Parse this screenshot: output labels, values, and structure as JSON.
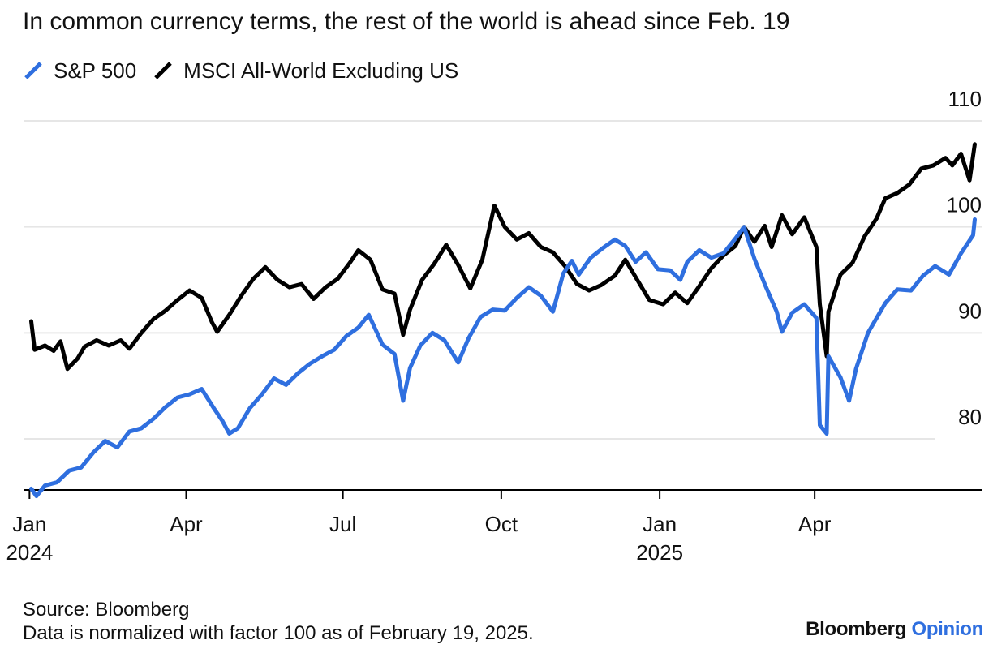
{
  "title": "In common currency terms, the rest of the world is ahead since Feb. 19",
  "legend": [
    {
      "name": "S&P 500",
      "color": "#2f6fdf",
      "icon": "diagonal-line-icon"
    },
    {
      "name": "MSCI All-World Excluding US",
      "color": "#000000",
      "icon": "diagonal-line-icon"
    }
  ],
  "footer": {
    "source": "Source: Bloomberg",
    "note": "Data is normalized with factor 100 as of February 19, 2025."
  },
  "brand": {
    "bloomberg": "Bloomberg",
    "opinion": "Opinion"
  },
  "colors": {
    "sp500": "#2f6fdf",
    "msci": "#000000",
    "grid": "#e6e6e6",
    "axis": "#000000"
  },
  "chart_data": {
    "type": "line",
    "title": "In common currency terms, the rest of the world is ahead since Feb. 19",
    "xlabel": "",
    "ylabel": "",
    "x_axis": {
      "min": "2023-12-29",
      "max": "2025-07-07",
      "ticks": [
        {
          "date": "2024-01-01",
          "label": "Jan",
          "sublabel": "2024"
        },
        {
          "date": "2024-04-01",
          "label": "Apr",
          "sublabel": ""
        },
        {
          "date": "2024-07-01",
          "label": "Jul",
          "sublabel": ""
        },
        {
          "date": "2024-10-01",
          "label": "Oct",
          "sublabel": ""
        },
        {
          "date": "2025-01-01",
          "label": "Jan",
          "sublabel": "2025"
        },
        {
          "date": "2025-04-01",
          "label": "Apr",
          "sublabel": ""
        }
      ]
    },
    "y_axis": {
      "min": 74,
      "max": 110,
      "ticks": [
        80,
        90,
        100,
        110
      ],
      "position": "right"
    },
    "grid": true,
    "legend_position": "top-left",
    "series": [
      {
        "name": "S&P 500",
        "color": "#2f6fdf",
        "points": [
          [
            "2024-01-02",
            75.3
          ],
          [
            "2024-01-05",
            74.6
          ],
          [
            "2024-01-10",
            75.6
          ],
          [
            "2024-01-17",
            75.9
          ],
          [
            "2024-01-24",
            77.0
          ],
          [
            "2024-01-31",
            77.3
          ],
          [
            "2024-02-07",
            78.7
          ],
          [
            "2024-02-14",
            79.8
          ],
          [
            "2024-02-21",
            79.2
          ],
          [
            "2024-02-28",
            80.7
          ],
          [
            "2024-03-06",
            81.0
          ],
          [
            "2024-03-13",
            81.9
          ],
          [
            "2024-03-20",
            83.0
          ],
          [
            "2024-03-27",
            83.9
          ],
          [
            "2024-04-03",
            84.2
          ],
          [
            "2024-04-10",
            84.7
          ],
          [
            "2024-04-17",
            82.9
          ],
          [
            "2024-04-22",
            81.7
          ],
          [
            "2024-04-26",
            80.5
          ],
          [
            "2024-05-01",
            81.0
          ],
          [
            "2024-05-08",
            82.9
          ],
          [
            "2024-05-15",
            84.2
          ],
          [
            "2024-05-22",
            85.7
          ],
          [
            "2024-05-29",
            85.1
          ],
          [
            "2024-06-05",
            86.2
          ],
          [
            "2024-06-12",
            87.1
          ],
          [
            "2024-06-19",
            87.8
          ],
          [
            "2024-06-26",
            88.4
          ],
          [
            "2024-07-03",
            89.7
          ],
          [
            "2024-07-10",
            90.5
          ],
          [
            "2024-07-16",
            91.7
          ],
          [
            "2024-07-24",
            88.9
          ],
          [
            "2024-07-31",
            88.0
          ],
          [
            "2024-08-05",
            83.6
          ],
          [
            "2024-08-09",
            86.7
          ],
          [
            "2024-08-15",
            88.8
          ],
          [
            "2024-08-22",
            90.0
          ],
          [
            "2024-08-29",
            89.3
          ],
          [
            "2024-09-06",
            87.2
          ],
          [
            "2024-09-12",
            89.5
          ],
          [
            "2024-09-19",
            91.5
          ],
          [
            "2024-09-26",
            92.2
          ],
          [
            "2024-10-03",
            92.1
          ],
          [
            "2024-10-10",
            93.3
          ],
          [
            "2024-10-17",
            94.3
          ],
          [
            "2024-10-24",
            93.5
          ],
          [
            "2024-10-31",
            92.0
          ],
          [
            "2024-11-06",
            95.6
          ],
          [
            "2024-11-11",
            96.8
          ],
          [
            "2024-11-15",
            95.5
          ],
          [
            "2024-11-22",
            97.1
          ],
          [
            "2024-11-29",
            98.0
          ],
          [
            "2024-12-06",
            98.8
          ],
          [
            "2024-12-12",
            98.2
          ],
          [
            "2024-12-18",
            96.7
          ],
          [
            "2024-12-24",
            97.6
          ],
          [
            "2024-12-31",
            96.0
          ],
          [
            "2025-01-07",
            95.9
          ],
          [
            "2025-01-13",
            95.0
          ],
          [
            "2025-01-17",
            96.7
          ],
          [
            "2025-01-24",
            97.8
          ],
          [
            "2025-01-31",
            97.1
          ],
          [
            "2025-02-07",
            97.5
          ],
          [
            "2025-02-14",
            98.9
          ],
          [
            "2025-02-19",
            100.0
          ],
          [
            "2025-02-25",
            97.0
          ],
          [
            "2025-03-03",
            94.6
          ],
          [
            "2025-03-10",
            92.0
          ],
          [
            "2025-03-13",
            90.1
          ],
          [
            "2025-03-19",
            91.9
          ],
          [
            "2025-03-26",
            92.7
          ],
          [
            "2025-04-02",
            91.4
          ],
          [
            "2025-04-04",
            81.3
          ],
          [
            "2025-04-08",
            80.5
          ],
          [
            "2025-04-09",
            87.8
          ],
          [
            "2025-04-16",
            85.8
          ],
          [
            "2025-04-21",
            83.6
          ],
          [
            "2025-04-25",
            86.6
          ],
          [
            "2025-05-02",
            90.0
          ],
          [
            "2025-05-12",
            92.8
          ],
          [
            "2025-05-19",
            94.1
          ],
          [
            "2025-05-27",
            94.0
          ],
          [
            "2025-06-03",
            95.4
          ],
          [
            "2025-06-10",
            96.3
          ],
          [
            "2025-06-18",
            95.5
          ],
          [
            "2025-06-25",
            97.5
          ],
          [
            "2025-07-02",
            99.2
          ],
          [
            "2025-07-03",
            100.7
          ]
        ]
      },
      {
        "name": "MSCI All-World Excluding US",
        "color": "#000000",
        "points": [
          [
            "2024-01-02",
            91.1
          ],
          [
            "2024-01-04",
            88.4
          ],
          [
            "2024-01-10",
            88.8
          ],
          [
            "2024-01-15",
            88.3
          ],
          [
            "2024-01-19",
            89.2
          ],
          [
            "2024-01-23",
            86.6
          ],
          [
            "2024-01-29",
            87.6
          ],
          [
            "2024-02-02",
            88.7
          ],
          [
            "2024-02-09",
            89.3
          ],
          [
            "2024-02-16",
            88.8
          ],
          [
            "2024-02-23",
            89.3
          ],
          [
            "2024-02-28",
            88.5
          ],
          [
            "2024-03-06",
            90.0
          ],
          [
            "2024-03-13",
            91.3
          ],
          [
            "2024-03-20",
            92.1
          ],
          [
            "2024-03-27",
            93.1
          ],
          [
            "2024-04-03",
            94.0
          ],
          [
            "2024-04-10",
            93.3
          ],
          [
            "2024-04-16",
            91.0
          ],
          [
            "2024-04-19",
            90.1
          ],
          [
            "2024-04-26",
            91.7
          ],
          [
            "2024-05-03",
            93.5
          ],
          [
            "2024-05-10",
            95.1
          ],
          [
            "2024-05-17",
            96.2
          ],
          [
            "2024-05-24",
            95.0
          ],
          [
            "2024-05-31",
            94.3
          ],
          [
            "2024-06-07",
            94.6
          ],
          [
            "2024-06-14",
            93.2
          ],
          [
            "2024-06-21",
            94.3
          ],
          [
            "2024-06-28",
            95.1
          ],
          [
            "2024-07-05",
            96.6
          ],
          [
            "2024-07-10",
            97.8
          ],
          [
            "2024-07-17",
            96.9
          ],
          [
            "2024-07-24",
            94.1
          ],
          [
            "2024-07-31",
            93.7
          ],
          [
            "2024-08-05",
            89.8
          ],
          [
            "2024-08-09",
            92.2
          ],
          [
            "2024-08-16",
            95.0
          ],
          [
            "2024-08-23",
            96.5
          ],
          [
            "2024-08-30",
            98.3
          ],
          [
            "2024-09-06",
            96.4
          ],
          [
            "2024-09-13",
            94.2
          ],
          [
            "2024-09-20",
            96.9
          ],
          [
            "2024-09-27",
            102.0
          ],
          [
            "2024-10-03",
            100.0
          ],
          [
            "2024-10-10",
            98.8
          ],
          [
            "2024-10-17",
            99.4
          ],
          [
            "2024-10-24",
            98.1
          ],
          [
            "2024-10-31",
            97.6
          ],
          [
            "2024-11-07",
            96.3
          ],
          [
            "2024-11-14",
            94.6
          ],
          [
            "2024-11-21",
            94.0
          ],
          [
            "2024-11-28",
            94.5
          ],
          [
            "2024-12-06",
            95.4
          ],
          [
            "2024-12-12",
            96.9
          ],
          [
            "2024-12-19",
            95.0
          ],
          [
            "2024-12-26",
            93.1
          ],
          [
            "2025-01-03",
            92.7
          ],
          [
            "2025-01-10",
            93.8
          ],
          [
            "2025-01-17",
            92.8
          ],
          [
            "2025-01-24",
            94.4
          ],
          [
            "2025-01-31",
            96.1
          ],
          [
            "2025-02-07",
            97.3
          ],
          [
            "2025-02-14",
            98.2
          ],
          [
            "2025-02-19",
            100.0
          ],
          [
            "2025-02-25",
            98.6
          ],
          [
            "2025-03-03",
            100.1
          ],
          [
            "2025-03-07",
            98.1
          ],
          [
            "2025-03-13",
            101.1
          ],
          [
            "2025-03-19",
            99.3
          ],
          [
            "2025-03-26",
            100.9
          ],
          [
            "2025-04-02",
            98.1
          ],
          [
            "2025-04-04",
            92.7
          ],
          [
            "2025-04-08",
            87.8
          ],
          [
            "2025-04-09",
            92.0
          ],
          [
            "2025-04-16",
            95.5
          ],
          [
            "2025-04-23",
            96.6
          ],
          [
            "2025-04-30",
            99.1
          ],
          [
            "2025-05-07",
            100.8
          ],
          [
            "2025-05-12",
            102.7
          ],
          [
            "2025-05-19",
            103.2
          ],
          [
            "2025-05-26",
            104.0
          ],
          [
            "2025-06-02",
            105.5
          ],
          [
            "2025-06-09",
            105.8
          ],
          [
            "2025-06-16",
            106.5
          ],
          [
            "2025-06-20",
            105.8
          ],
          [
            "2025-06-25",
            106.9
          ],
          [
            "2025-06-30",
            104.4
          ],
          [
            "2025-07-03",
            107.8
          ]
        ]
      }
    ]
  }
}
